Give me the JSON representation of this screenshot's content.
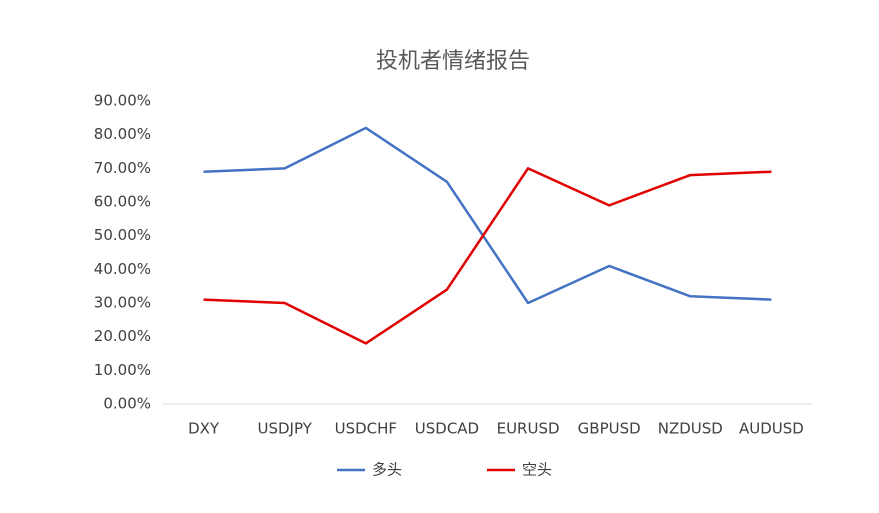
{
  "chart_data": {
    "type": "line",
    "title": "投机者情绪报告",
    "categories": [
      "DXY",
      "USDJPY",
      "USDCHF",
      "USDCAD",
      "EURUSD",
      "GBPUSD",
      "NZDUSD",
      "AUDUSD"
    ],
    "series": [
      {
        "name": "多头",
        "color": "#4472c4",
        "values": [
          69,
          70,
          82,
          66,
          30,
          41,
          32,
          31
        ]
      },
      {
        "name": "空头",
        "color": "#e00000",
        "values": [
          31,
          30,
          18,
          34,
          70,
          59,
          68,
          69
        ]
      }
    ],
    "ylim": [
      0,
      90
    ],
    "yticks": [
      {
        "value": 0,
        "label": "0.00%"
      },
      {
        "value": 10,
        "label": "10.00%"
      },
      {
        "value": 20,
        "label": "20.00%"
      },
      {
        "value": 30,
        "label": "30.00%"
      },
      {
        "value": 40,
        "label": "40.00%"
      },
      {
        "value": 50,
        "label": "50.00%"
      },
      {
        "value": 60,
        "label": "60.00%"
      },
      {
        "value": 70,
        "label": "70.00%"
      },
      {
        "value": 80,
        "label": "80.00%"
      },
      {
        "value": 90,
        "label": "90.00%"
      }
    ],
    "grid": false,
    "legend": "bottom"
  }
}
